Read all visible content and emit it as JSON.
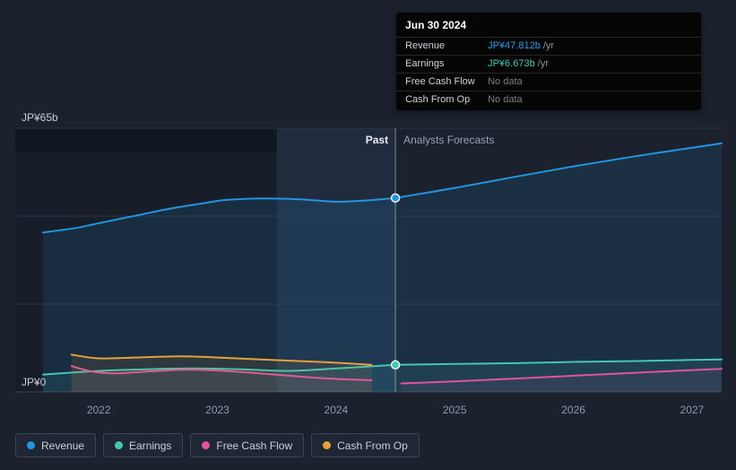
{
  "tooltip": {
    "date": "Jun 30 2024",
    "rows": [
      {
        "label": "Revenue",
        "value": "JP¥47.812b",
        "suffix": " /yr",
        "color": "#2f9ee3"
      },
      {
        "label": "Earnings",
        "value": "JP¥6.673b",
        "suffix": " /yr",
        "color": "#46c8b2"
      },
      {
        "label": "Free Cash Flow",
        "value": "No data",
        "suffix": "",
        "color": ""
      },
      {
        "label": "Cash From Op",
        "value": "No data",
        "suffix": "",
        "color": ""
      }
    ]
  },
  "chart": {
    "y_axis": {
      "max_label": "JP¥65b",
      "min_label": "JP¥0"
    },
    "past_label": "Past",
    "forecast_label": "Analysts Forecasts"
  },
  "legend": [
    {
      "label": "Revenue",
      "color": "#2394df"
    },
    {
      "label": "Earnings",
      "color": "#45c6b1"
    },
    {
      "label": "Free Cash Flow",
      "color": "#e0549e"
    },
    {
      "label": "Cash From Op",
      "color": "#e5a03c"
    }
  ],
  "chart_data": {
    "type": "line",
    "y_unit": "JP¥ billions per year",
    "x_range": [
      2021.53,
      2027.25
    ],
    "y_range": [
      0,
      65
    ],
    "x_ticks": [
      2022,
      2023,
      2024,
      2025,
      2026,
      2027
    ],
    "gridlines": [
      65,
      43.33,
      21.67,
      0
    ],
    "divider_x": 2024.5,
    "hover_band": [
      2023.5,
      2024.5
    ],
    "legend_position": "bottom",
    "markers": [
      {
        "name": "revenue-marker",
        "x": 2024.5,
        "value": 47.812,
        "color": "#2394df"
      },
      {
        "name": "earnings-marker",
        "x": 2024.5,
        "value": 6.673,
        "color": "#45c6b1"
      }
    ],
    "series": [
      {
        "name": "Revenue",
        "color": "#2394df",
        "fill_opacity": 0.13,
        "past": [
          [
            2021.53,
            39.3
          ],
          [
            2021.8,
            40.4
          ],
          [
            2022.0,
            41.6
          ],
          [
            2022.3,
            43.4
          ],
          [
            2022.6,
            45.2
          ],
          [
            2022.9,
            46.6
          ],
          [
            2023.1,
            47.4
          ],
          [
            2023.4,
            47.7
          ],
          [
            2023.7,
            47.5
          ],
          [
            2024.0,
            46.9
          ],
          [
            2024.25,
            47.2
          ],
          [
            2024.5,
            47.812
          ]
        ],
        "forecast": [
          [
            2024.5,
            47.812
          ],
          [
            2025.0,
            50.3
          ],
          [
            2025.5,
            53.0
          ],
          [
            2026.0,
            55.6
          ],
          [
            2026.5,
            58.0
          ],
          [
            2027.0,
            60.2
          ],
          [
            2027.25,
            61.3
          ]
        ]
      },
      {
        "name": "Earnings",
        "color": "#45c6b1",
        "fill_opacity": 0.1,
        "past": [
          [
            2021.53,
            4.3
          ],
          [
            2022.0,
            5.2
          ],
          [
            2022.4,
            5.6
          ],
          [
            2022.8,
            5.8
          ],
          [
            2023.2,
            5.6
          ],
          [
            2023.6,
            5.2
          ],
          [
            2024.0,
            5.8
          ],
          [
            2024.5,
            6.673
          ]
        ],
        "forecast": [
          [
            2024.5,
            6.673
          ],
          [
            2025.0,
            6.9
          ],
          [
            2025.5,
            7.1
          ],
          [
            2026.0,
            7.4
          ],
          [
            2026.5,
            7.6
          ],
          [
            2027.0,
            7.9
          ],
          [
            2027.25,
            8.0
          ]
        ]
      },
      {
        "name": "Free Cash Flow",
        "color": "#e0549e",
        "fill_opacity": 0.08,
        "past": [
          [
            2021.77,
            6.4
          ],
          [
            2021.95,
            5.0
          ],
          [
            2022.15,
            4.6
          ],
          [
            2022.45,
            5.1
          ],
          [
            2022.75,
            5.5
          ],
          [
            2023.05,
            5.2
          ],
          [
            2023.35,
            4.6
          ],
          [
            2023.65,
            3.9
          ],
          [
            2023.95,
            3.3
          ],
          [
            2024.3,
            2.9
          ]
        ],
        "forecast": [
          [
            2024.55,
            2.1
          ],
          [
            2025.0,
            2.6
          ],
          [
            2025.5,
            3.3
          ],
          [
            2026.0,
            4.0
          ],
          [
            2026.5,
            4.7
          ],
          [
            2027.0,
            5.4
          ],
          [
            2027.25,
            5.7
          ]
        ]
      },
      {
        "name": "Cash From Op",
        "color": "#e5a03c",
        "fill_opacity": 0.1,
        "past": [
          [
            2021.77,
            9.2
          ],
          [
            2022.0,
            8.3
          ],
          [
            2022.3,
            8.5
          ],
          [
            2022.7,
            8.8
          ],
          [
            2023.0,
            8.5
          ],
          [
            2023.3,
            8.1
          ],
          [
            2023.7,
            7.6
          ],
          [
            2024.0,
            7.2
          ],
          [
            2024.3,
            6.7
          ]
        ],
        "forecast": []
      }
    ]
  }
}
